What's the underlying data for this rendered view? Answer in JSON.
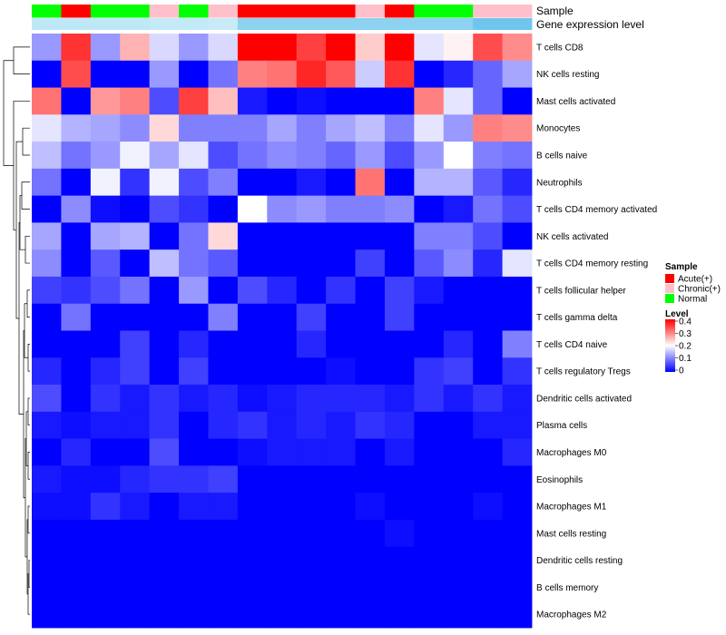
{
  "chart_data": {
    "type": "heatmap",
    "title": "",
    "annotations": {
      "sample_label": "Sample",
      "expression_label": "Gene expression level"
    },
    "column_samples": [
      "Normal",
      "Acute(+)",
      "Normal",
      "Normal",
      "Chronic(+)",
      "Normal",
      "Chronic(+)",
      "Acute(+)",
      "Acute(+)",
      "Acute(+)",
      "Acute(+)",
      "Chronic(+)",
      "Acute(+)",
      "Normal",
      "Normal",
      "Chronic(+)",
      "Chronic(+)"
    ],
    "column_expression_colors": [
      "#bfe8f7",
      "#bfe8f7",
      "#bfe8f7",
      "#bfe8f7",
      "#c4e9f7",
      "#c4e9f7",
      "#c9ebf8",
      "#8dd2f0",
      "#8dd2f0",
      "#8dd2f0",
      "#8dd2f0",
      "#8dd2f0",
      "#8dd2f0",
      "#8dd2f0",
      "#8dd2f0",
      "#6ec6ee",
      "#6ec6ee"
    ],
    "rows": [
      "T cells CD8",
      "NK cells resting",
      "Mast cells activated",
      "Monocytes",
      "B cells naive",
      "Neutrophils",
      "T cells CD4 memory activated",
      "NK cells activated",
      "T cells CD4 memory resting",
      "T cells follicular helper",
      "T cells gamma delta",
      "T cells CD4 naive",
      "T cells regulatory  Tregs",
      "Dendritic cells activated",
      "Plasma cells",
      "Macrophages M0",
      "Eosinophils",
      "Macrophages M1",
      "Mast cells resting",
      "Dendritic cells resting",
      "B cells memory",
      "Macrophages M2"
    ],
    "values": [
      [
        0.12,
        0.36,
        0.12,
        0.26,
        0.17,
        0.12,
        0.17,
        0.4,
        0.4,
        0.35,
        0.4,
        0.24,
        0.4,
        0.18,
        0.21,
        0.34,
        0.29
      ],
      [
        0.0,
        0.34,
        0.0,
        0.0,
        0.12,
        0.0,
        0.09,
        0.3,
        0.31,
        0.37,
        0.33,
        0.16,
        0.36,
        0.0,
        0.03,
        0.08,
        0.13
      ],
      [
        0.31,
        0.0,
        0.28,
        0.3,
        0.06,
        0.35,
        0.25,
        0.02,
        0.0,
        0.01,
        0.0,
        0.0,
        0.0,
        0.3,
        0.18,
        0.08,
        0.0
      ],
      [
        0.18,
        0.14,
        0.13,
        0.11,
        0.23,
        0.1,
        0.1,
        0.1,
        0.13,
        0.1,
        0.13,
        0.15,
        0.1,
        0.18,
        0.12,
        0.3,
        0.29
      ],
      [
        0.15,
        0.09,
        0.12,
        0.19,
        0.13,
        0.18,
        0.06,
        0.09,
        0.11,
        0.1,
        0.08,
        0.12,
        0.06,
        0.12,
        0.2,
        0.1,
        0.09
      ],
      [
        0.09,
        0.0,
        0.19,
        0.04,
        0.19,
        0.06,
        0.1,
        0.0,
        0.0,
        0.02,
        0.0,
        0.31,
        0.0,
        0.14,
        0.14,
        0.07,
        0.03
      ],
      [
        0.0,
        0.11,
        0.01,
        0.0,
        0.06,
        0.04,
        0.0,
        0.2,
        0.11,
        0.12,
        0.1,
        0.1,
        0.11,
        0.0,
        0.02,
        0.09,
        0.06
      ],
      [
        0.13,
        0.0,
        0.13,
        0.14,
        0.0,
        0.09,
        0.23,
        0.0,
        0.0,
        0.0,
        0.0,
        0.0,
        0.0,
        0.1,
        0.1,
        0.06,
        0.0
      ],
      [
        0.11,
        0.0,
        0.07,
        0.0,
        0.15,
        0.09,
        0.07,
        0.0,
        0.0,
        0.0,
        0.0,
        0.05,
        0.0,
        0.07,
        0.11,
        0.03,
        0.18
      ],
      [
        0.05,
        0.04,
        0.06,
        0.09,
        0.0,
        0.12,
        0.0,
        0.06,
        0.03,
        0.0,
        0.04,
        0.0,
        0.05,
        0.02,
        0.0,
        0.0,
        0.0
      ],
      [
        0.0,
        0.09,
        0.0,
        0.0,
        0.0,
        0.0,
        0.1,
        0.0,
        0.0,
        0.05,
        0.0,
        0.0,
        0.05,
        0.0,
        0.0,
        0.0,
        0.0
      ],
      [
        0.0,
        0.0,
        0.0,
        0.05,
        0.0,
        0.03,
        0.0,
        0.0,
        0.0,
        0.03,
        0.0,
        0.0,
        0.0,
        0.0,
        0.03,
        0.0,
        0.1
      ],
      [
        0.03,
        0.0,
        0.03,
        0.05,
        0.0,
        0.05,
        0.0,
        0.0,
        0.0,
        0.0,
        0.01,
        0.0,
        0.0,
        0.04,
        0.05,
        0.0,
        0.04
      ],
      [
        0.06,
        0.0,
        0.04,
        0.02,
        0.04,
        0.02,
        0.03,
        0.01,
        0.02,
        0.03,
        0.03,
        0.03,
        0.02,
        0.04,
        0.02,
        0.04,
        0.02
      ],
      [
        0.02,
        0.01,
        0.02,
        0.02,
        0.04,
        0.0,
        0.03,
        0.04,
        0.02,
        0.03,
        0.02,
        0.04,
        0.03,
        0.0,
        0.0,
        0.02,
        0.02
      ],
      [
        0.0,
        0.03,
        0.0,
        0.0,
        0.06,
        0.0,
        0.0,
        0.01,
        0.02,
        0.02,
        0.02,
        0.0,
        0.02,
        0.0,
        0.0,
        0.0,
        0.03
      ],
      [
        0.02,
        0.01,
        0.01,
        0.03,
        0.04,
        0.04,
        0.05,
        0.0,
        0.0,
        0.0,
        0.0,
        0.0,
        0.0,
        0.0,
        0.0,
        0.0,
        0.0
      ],
      [
        0.01,
        0.01,
        0.04,
        0.02,
        0.0,
        0.02,
        0.02,
        0.0,
        0.0,
        0.0,
        0.0,
        0.01,
        0.0,
        0.0,
        0.0,
        0.01,
        0.0
      ],
      [
        0.0,
        0.0,
        0.0,
        0.0,
        0.0,
        0.0,
        0.0,
        0.0,
        0.0,
        0.0,
        0.0,
        0.0,
        0.01,
        0.0,
        0.0,
        0.0,
        0.0
      ],
      [
        0.0,
        0.0,
        0.0,
        0.0,
        0.0,
        0.0,
        0.0,
        0.0,
        0.0,
        0.0,
        0.0,
        0.0,
        0.0,
        0.0,
        0.0,
        0.0,
        0.0
      ],
      [
        0.0,
        0.0,
        0.0,
        0.0,
        0.0,
        0.0,
        0.0,
        0.0,
        0.0,
        0.0,
        0.0,
        0.0,
        0.0,
        0.0,
        0.0,
        0.0,
        0.0
      ],
      [
        0.0,
        0.0,
        0.0,
        0.0,
        0.0,
        0.0,
        0.0,
        0.0,
        0.0,
        0.0,
        0.0,
        0.0,
        0.0,
        0.0,
        0.0,
        0.0,
        0.0
      ]
    ],
    "legend_sample": {
      "title": "Sample",
      "entries": [
        {
          "label": "Acute(+)",
          "color": "#ff0000"
        },
        {
          "label": "Chronic(+)",
          "color": "#ffc0cb"
        },
        {
          "label": "Normal",
          "color": "#00ff00"
        }
      ]
    },
    "legend_level": {
      "title": "Level",
      "ticks": [
        "0.4",
        "0.3",
        "0.2",
        "0.1",
        "0"
      ],
      "range": [
        0,
        0.4
      ],
      "colors": [
        "#0000ff",
        "#ffffff",
        "#ff0000"
      ]
    }
  }
}
